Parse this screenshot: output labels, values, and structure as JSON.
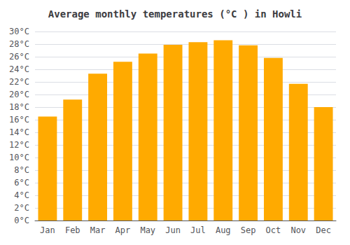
{
  "chart_data": {
    "type": "bar",
    "title": "Average monthly temperatures (°C ) in Howli",
    "categories": [
      "Jan",
      "Feb",
      "Mar",
      "Apr",
      "May",
      "Jun",
      "Jul",
      "Aug",
      "Sep",
      "Oct",
      "Nov",
      "Dec"
    ],
    "values": [
      16.5,
      19.2,
      23.3,
      25.2,
      26.5,
      27.9,
      28.3,
      28.6,
      27.8,
      25.8,
      21.7,
      18.0
    ],
    "color": "#FFAA00",
    "ylim": [
      0,
      30
    ],
    "yticks": [
      {
        "value": 0,
        "label": "0°C"
      },
      {
        "value": 2,
        "label": "2°C"
      },
      {
        "value": 4,
        "label": "4°C"
      },
      {
        "value": 6,
        "label": "6°C"
      },
      {
        "value": 8,
        "label": "8°C"
      },
      {
        "value": 10,
        "label": "10°C"
      },
      {
        "value": 12,
        "label": "12°C"
      },
      {
        "value": 14,
        "label": "14°C"
      },
      {
        "value": 16,
        "label": "16°C"
      },
      {
        "value": 18,
        "label": "18°C"
      },
      {
        "value": 20,
        "label": "20°C"
      },
      {
        "value": 22,
        "label": "22°C"
      },
      {
        "value": 24,
        "label": "24°C"
      },
      {
        "value": 26,
        "label": "26°C"
      },
      {
        "value": 28,
        "label": "28°C"
      },
      {
        "value": 30,
        "label": "30°C"
      }
    ],
    "grid": true
  }
}
